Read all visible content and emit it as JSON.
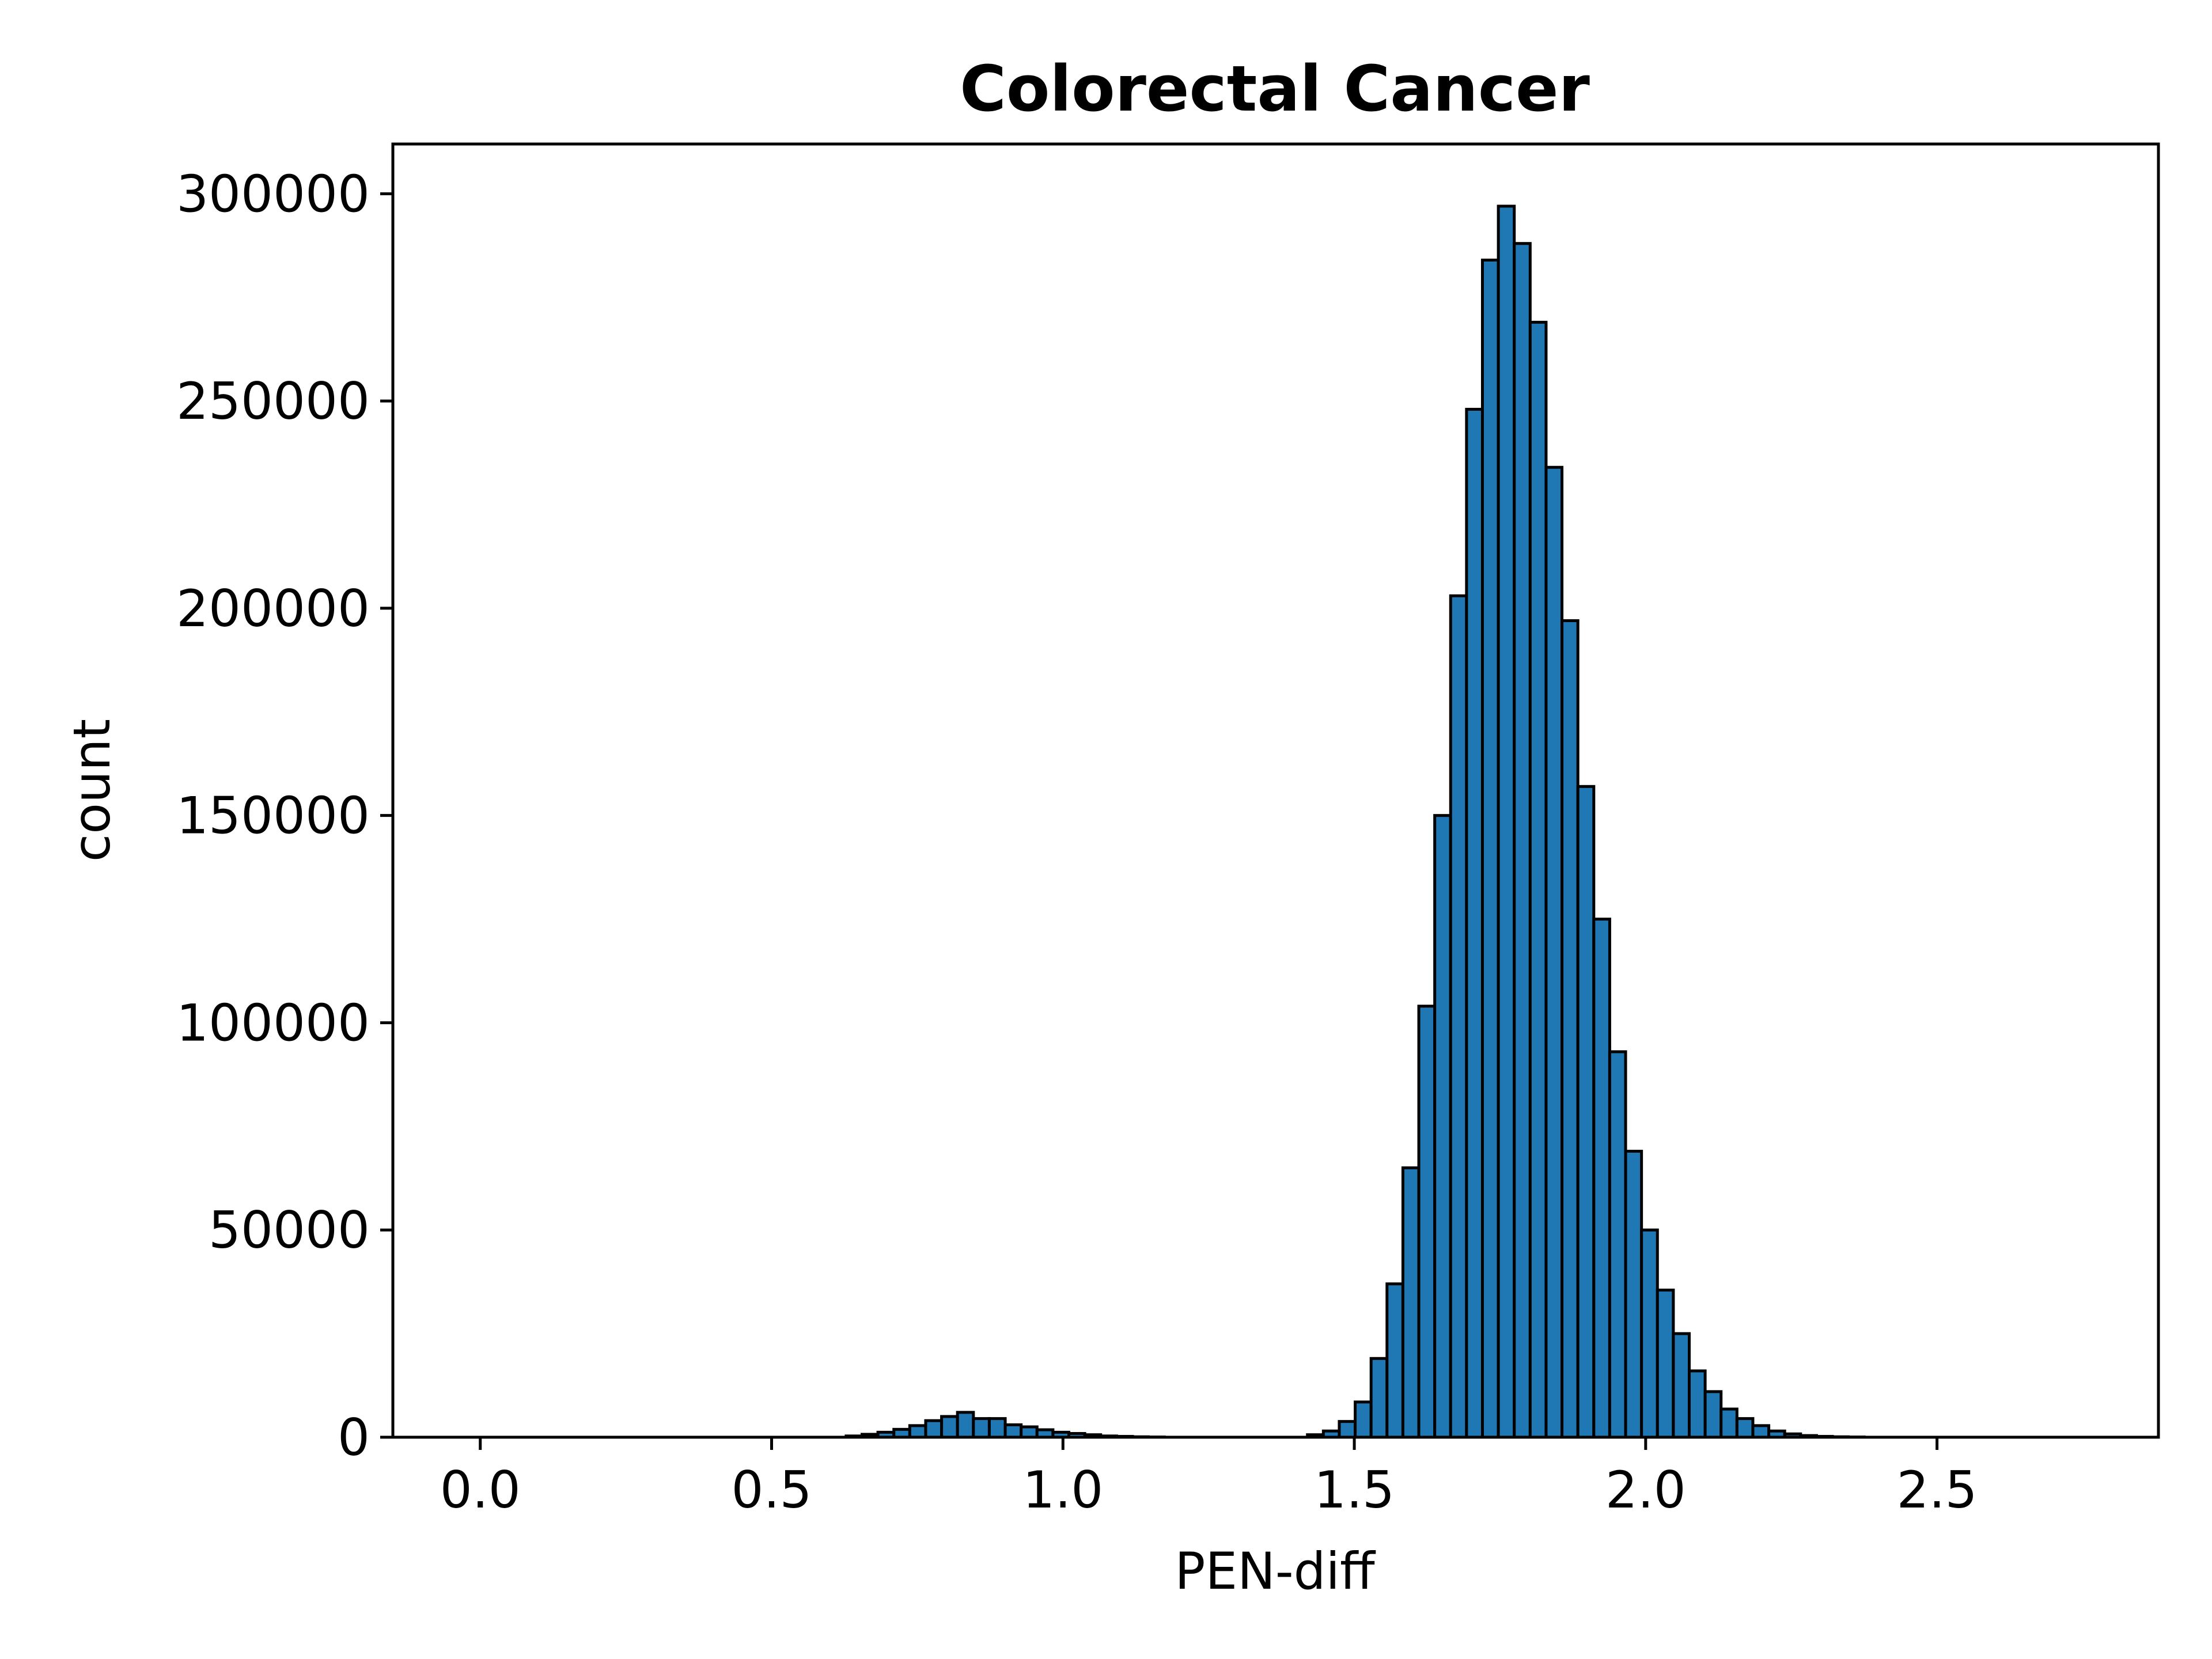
{
  "chart_data": {
    "type": "bar",
    "title": "Colorectal Cancer",
    "xlabel": "PEN-diff",
    "ylabel": "count",
    "xlim": [
      -0.15,
      2.88
    ],
    "ylim": [
      0,
      312000
    ],
    "xticks": [
      0.0,
      0.5,
      1.0,
      1.5,
      2.0,
      2.5
    ],
    "xtick_labels": [
      "0.0",
      "0.5",
      "1.0",
      "1.5",
      "2.0",
      "2.5"
    ],
    "yticks": [
      0,
      50000,
      100000,
      150000,
      200000,
      250000,
      300000
    ],
    "ytick_labels": [
      "0",
      "50000",
      "100000",
      "150000",
      "200000",
      "250000",
      "300000"
    ],
    "grid": false,
    "bar_color": "#1f77b4",
    "edge_color": "#000000",
    "bin_width": 0.0273,
    "bins_start": 0.0,
    "values": [
      0,
      0,
      0,
      0,
      0,
      0,
      0,
      0,
      0,
      0,
      0,
      0,
      0,
      0,
      0,
      0,
      0,
      0,
      0,
      0,
      0,
      0,
      0,
      0,
      0,
      0,
      0,
      0,
      0,
      0,
      0,
      0,
      0,
      0,
      0,
      0,
      0,
      0,
      0,
      0,
      0,
      0,
      0,
      0,
      0,
      0,
      0,
      0,
      0,
      0,
      0,
      0,
      0,
      0,
      0,
      0,
      0,
      0,
      0,
      0,
      0,
      0,
      0,
      0,
      0,
      0,
      0,
      0,
      0,
      0,
      0,
      0,
      0,
      0,
      0,
      0,
      0,
      0,
      0,
      0,
      0,
      0,
      0,
      0,
      0,
      0,
      0,
      0,
      0,
      0,
      0,
      0,
      0,
      0,
      0,
      0,
      0,
      0,
      0,
      0
    ],
    "counts": [
      0,
      0,
      0,
      0,
      0,
      0,
      0,
      0,
      0,
      0,
      0,
      0,
      0,
      0,
      0,
      0,
      0,
      0,
      0,
      0,
      0,
      0,
      0,
      300,
      700,
      1200,
      1900,
      2800,
      4000,
      5000,
      6000,
      4500,
      4500,
      3000,
      2500,
      1800,
      1200,
      900,
      600,
      300,
      200,
      100,
      50,
      0,
      0,
      0,
      0,
      0,
      0,
      0,
      0,
      0,
      600,
      1500,
      3800,
      8500,
      19000,
      37000,
      65000,
      104000,
      150000,
      203000,
      248000,
      284000,
      297000,
      288000,
      269000,
      234000,
      197000,
      157000,
      125000,
      93000,
      69000,
      50000,
      35500,
      25000,
      16000,
      11000,
      6800,
      4500,
      2800,
      1500,
      800,
      400,
      200,
      100,
      50,
      0,
      0,
      0,
      0,
      0,
      0,
      0,
      0,
      0,
      0,
      0,
      0,
      0
    ]
  }
}
